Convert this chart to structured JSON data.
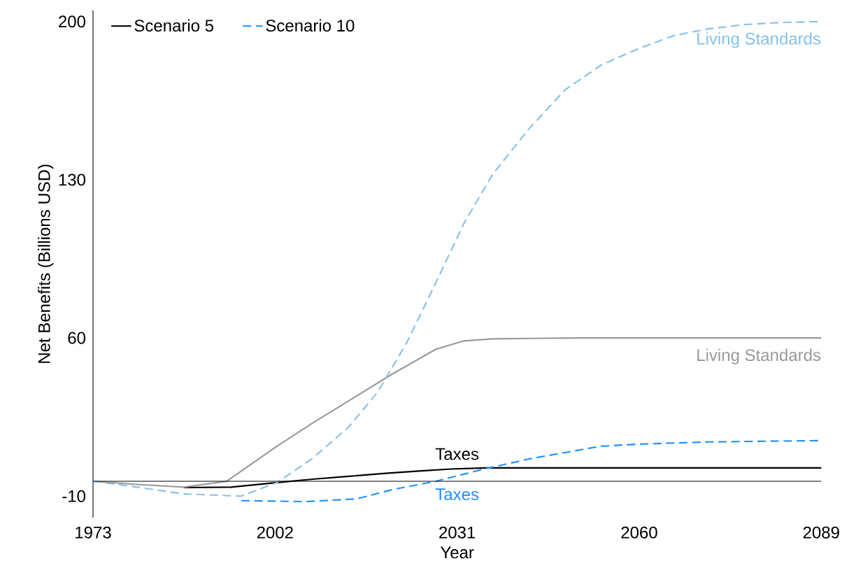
{
  "chart_data": {
    "type": "line",
    "xlabel": "Year",
    "ylabel": "Net Benefits (Billions USD)",
    "xlim": [
      1973,
      2089
    ],
    "ylim": [
      -19.5,
      205
    ],
    "xticks": [
      1973,
      2002,
      2031,
      2060,
      2089
    ],
    "yticks": [
      -10,
      60,
      130,
      200
    ],
    "grid": false,
    "legend": "top left",
    "series": [
      {
        "name": "Scenario 5",
        "color": "#000000",
        "line_style": "solid",
        "x": [
          1987.5,
          1995,
          2002.3,
          2008,
          2013.8,
          2020,
          2025.3,
          2030,
          2035.6,
          2050,
          2089
        ],
        "values": [
          -6.2,
          -6,
          -4,
          -2.5,
          -1.2,
          0.2,
          1.2,
          2,
          2.5,
          2.5,
          2.5
        ]
      },
      {
        "color": "#999999",
        "line_style": "solid",
        "x": [
          1973,
          1980,
          1987.5,
          1994.3,
          2002.3,
          2008,
          2013.8,
          2020.7,
          2027.6,
          2032.1,
          2036.7,
          2050,
          2089
        ],
        "values": [
          -3.4,
          -4.8,
          -6,
          -3.4,
          12.1,
          22.4,
          32.3,
          44.1,
          55,
          58.7,
          59.6,
          60,
          60
        ]
      },
      {
        "color": "#85c1e9",
        "line_style": "dashed",
        "x": [
          1973,
          1980,
          1987.4,
          1996.6,
          2002.3,
          2008,
          2013.8,
          2018.4,
          2023,
          2027.6,
          2032.1,
          2036.7,
          2042.5,
          2048.2,
          2053.9,
          2059.7,
          2065.4,
          2071.1,
          2076.9,
          2082.6,
          2089
        ],
        "values": [
          -3.4,
          -6,
          -9,
          -10,
          -4,
          6.8,
          20.8,
          36.3,
          58,
          84.4,
          110.8,
          132.6,
          152.7,
          169.8,
          180.7,
          187.8,
          193.7,
          196.8,
          198.7,
          199.6,
          200
        ]
      },
      {
        "name": "Scenario 10",
        "color": "#1e90ff",
        "line_style": "dashed",
        "x": [
          1996.6,
          2007,
          2015,
          2020.7,
          2027.6,
          2035.6,
          2042.5,
          2048.2,
          2053.9,
          2059.7,
          2071.1,
          2089
        ],
        "values": [
          -12,
          -12.4,
          -11.2,
          -7.1,
          -3.4,
          2.2,
          6.5,
          9.3,
          12.1,
          13,
          14,
          14.6
        ]
      }
    ],
    "ref_lines": [
      {
        "axis": "y",
        "value": -3.4,
        "color": "#000000"
      }
    ],
    "annotations": [
      "Taxes",
      "Living Standards",
      "Living Standards",
      "Taxes"
    ]
  }
}
